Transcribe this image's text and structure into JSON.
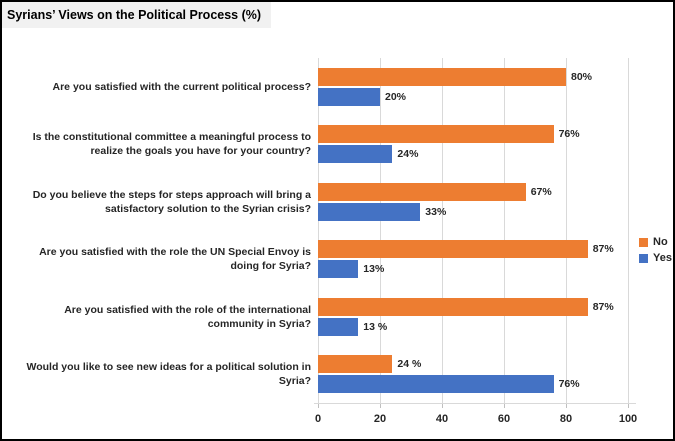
{
  "title": "Syrians’ Views on the Political Process (%)",
  "colors": {
    "no": "#ED7D31",
    "yes": "#4472C4",
    "gridline": "#D9D9D9",
    "title_bg": "#F1F1F1",
    "border": "#000000",
    "text": "#262626"
  },
  "chart_data": {
    "type": "bar",
    "orientation": "horizontal",
    "title": "Syrians’ Views on the Political Process (%)",
    "categories": [
      "Are you satisfied with the current political process?",
      "Is the constitutional committee a meaningful process to realize the goals you have for your country?",
      "Do you believe the steps for steps approach will bring a satisfactory solution to the Syrian crisis?",
      "Are you satisfied with the role the UN Special Envoy is doing for Syria?",
      "Are you satisfied with the role of the international community in Syria?",
      "Would you like to see new ideas for a political solution in Syria?"
    ],
    "series": [
      {
        "name": "No",
        "color": "#ED7D31",
        "values": [
          80,
          76,
          67,
          87,
          87,
          24
        ],
        "labels": [
          "80%",
          "76%",
          "67%",
          "87%",
          "87%",
          "24 %"
        ]
      },
      {
        "name": "Yes",
        "color": "#4472C4",
        "values": [
          20,
          24,
          33,
          13,
          13,
          76
        ],
        "labels": [
          "20%",
          "24%",
          "33%",
          "13%",
          "13 %",
          "76%"
        ]
      }
    ],
    "xlim": [
      0,
      100
    ],
    "x_ticks": [
      "0",
      "20",
      "40",
      "60",
      "80",
      "100"
    ],
    "legend_position": "right",
    "legend_entries": [
      "No",
      "Yes"
    ],
    "grid": "vertical"
  }
}
